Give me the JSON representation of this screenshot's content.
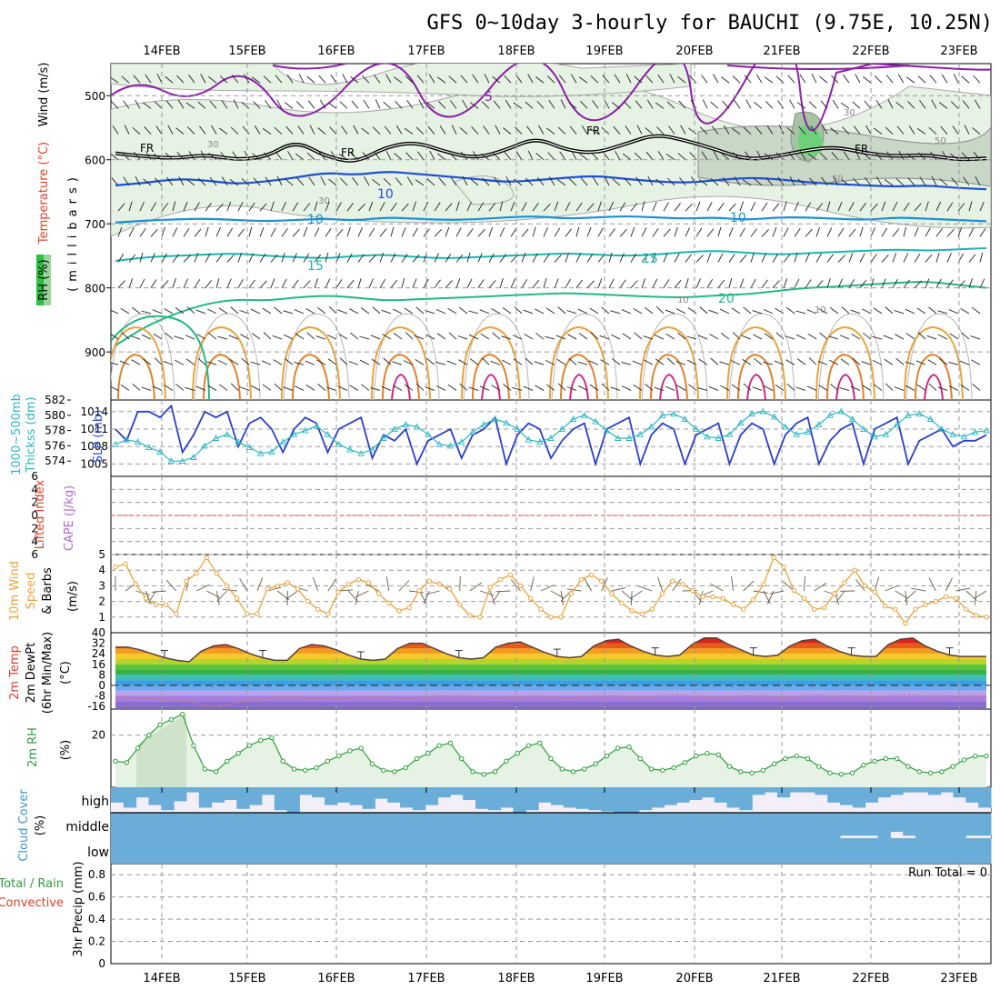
{
  "title": "GFS 0~10day 3-hourly for BAUCHI (9.75E, 10.25N)",
  "run_total": "Run Total = 0",
  "dates": [
    "14FEB",
    "15FEB",
    "16FEB",
    "17FEB",
    "18FEB",
    "19FEB",
    "20FEB",
    "21FEB",
    "22FEB",
    "23FEB"
  ],
  "labels": {
    "p1_rh": "RH (%)",
    "p1_temp": "Temperature (°C)",
    "p1_wind": "Wind (m/s)",
    "p1_axis": "(millibars)",
    "p1_axis_chars": [
      "(",
      "m",
      "i",
      "l",
      "l",
      "i",
      "b",
      "a",
      "r",
      "s",
      ")"
    ],
    "p2_thick": "1000~500mb",
    "p2_thick2": "Thickss (dm)",
    "p2_slp": "SLP (mb)",
    "p3_li": "Lifted Index",
    "p3_cape": "CAPE (J/kg)",
    "p4_a": "10m Wind",
    "p4_b": "Speed",
    "p4_c": "& Barbs",
    "p4_d": "(m/s)",
    "p5_a": "2m Temp",
    "p5_b": "2m DewPt",
    "p5_c": "(6hr Min/Max)",
    "p5_d": "(°C)",
    "p6_a": "2m RH",
    "p6_b": "(%)",
    "p7_a": "Cloud Cover",
    "p7_b": "(%)",
    "p7_high": "high",
    "p7_middle": "middle",
    "p7_low": "low",
    "p8_a": "Total / Rain",
    "p8_b": "Convective",
    "p8_c": "3hr Precip (mm)"
  },
  "chart_data": [
    {
      "type": "line",
      "panel": "upper-air",
      "y_ticks": [
        500,
        600,
        700,
        800,
        900
      ],
      "ylim": [
        450,
        975
      ],
      "contour_labels": [
        "5",
        "5",
        "10",
        "10",
        "15",
        "15",
        "20",
        "FR",
        "FR",
        "FR",
        "FR",
        "30",
        "30",
        "30",
        "50",
        "50",
        "10",
        "10"
      ],
      "freezing_level_mb": [
        590,
        595,
        598,
        592,
        600,
        596,
        570,
        595,
        605,
        580,
        572,
        588,
        598,
        585,
        565,
        585,
        590,
        575,
        560,
        570,
        584,
        600,
        595,
        585,
        580,
        590,
        595,
        592,
        600,
        598
      ],
      "isotherm_5_mb": [
        640,
        636,
        630,
        632,
        638,
        634,
        628,
        620,
        624,
        618,
        622,
        626,
        630,
        635,
        632,
        628,
        625,
        630,
        634,
        636,
        632,
        628,
        630,
        635,
        638,
        640,
        642,
        640,
        644,
        646
      ],
      "isotherm_10_mb": [
        698,
        695,
        693,
        692,
        694,
        696,
        694,
        692,
        695,
        690,
        692,
        694,
        693,
        690,
        688,
        692,
        690,
        688,
        690,
        692,
        690,
        694,
        690,
        690,
        692,
        694,
        690,
        692,
        694,
        696
      ],
      "isotherm_15_mb": [
        758,
        752,
        750,
        748,
        746,
        750,
        752,
        754,
        750,
        748,
        752,
        754,
        752,
        750,
        748,
        746,
        748,
        750,
        748,
        744,
        742,
        745,
        748,
        746,
        744,
        742,
        740,
        742,
        740,
        738
      ],
      "isotherm_20_mb": [
        890,
        860,
        840,
        825,
        818,
        820,
        815,
        812,
        815,
        820,
        818,
        816,
        814,
        812,
        810,
        808,
        810,
        812,
        814,
        815,
        812,
        810,
        805,
        800,
        798,
        795,
        792,
        790,
        795,
        800
      ]
    },
    {
      "type": "line",
      "panel": "thickness-slp",
      "series": [
        {
          "name": "SLP (mb)",
          "ticks": [
            1005,
            1008,
            1011,
            1014
          ],
          "values": [
            1011,
            1009,
            1014,
            1014,
            1013,
            1015,
            1007,
            1010,
            1014,
            1013,
            1014,
            1008,
            1012,
            1013,
            1011,
            1007,
            1011,
            1013,
            1012,
            1007,
            1011,
            1012,
            1013,
            1006,
            1010,
            1009,
            1011,
            1005,
            1009,
            1010,
            1011,
            1006,
            1010,
            1011,
            1013,
            1005,
            1010,
            1012,
            1011,
            1006,
            1009,
            1011,
            1012,
            1005,
            1011,
            1012,
            1013,
            1005,
            1010,
            1012,
            1011,
            1005,
            1010,
            1011,
            1012,
            1005,
            1010,
            1012,
            1011,
            1005,
            1010,
            1012,
            1013,
            1005,
            1009,
            1011,
            1012,
            1005,
            1011,
            1012,
            1013,
            1005,
            1009,
            1010,
            1011,
            1008,
            1009,
            1009,
            1010
          ]
        },
        {
          "name": "1000~500mb Thickness (dm)",
          "ticks": [
            574,
            576,
            578,
            580,
            582
          ],
          "values": [
            576.2,
            576.8,
            576.5,
            575.8,
            575.2,
            574,
            574,
            574.5,
            576,
            577,
            577.5,
            576.5,
            575.8,
            575,
            575.2,
            576.5,
            577.5,
            578,
            578.6,
            577.5,
            576.2,
            575.5,
            575,
            575.5,
            577,
            578.2,
            578.8,
            578.5,
            577.5,
            576.2,
            576,
            576.5,
            577.8,
            578.8,
            579.5,
            579,
            578.2,
            576.8,
            576.5,
            577,
            578.2,
            579.5,
            580,
            579.2,
            578,
            577,
            577,
            577.5,
            578.5,
            580,
            580.2,
            579.5,
            578.2,
            577.2,
            577,
            577.5,
            579,
            580.2,
            580.5,
            579.8,
            578.5,
            577.5,
            577.8,
            578.8,
            580,
            580.5,
            579.5,
            578.2,
            577.2,
            577.5,
            578.8,
            580,
            580.2,
            579.5,
            578.2,
            577.5,
            577.2,
            577.8,
            578
          ]
        }
      ]
    },
    {
      "type": "line",
      "panel": "lifted-index-cape",
      "y_ticks": [
        6,
        4,
        2,
        0,
        2,
        4,
        6
      ],
      "series": [
        {
          "name": "Lifted Index",
          "values": []
        },
        {
          "name": "CAPE",
          "values": []
        }
      ]
    },
    {
      "type": "line",
      "panel": "10m-wind",
      "y_ticks": [
        1,
        2,
        3,
        4,
        5
      ],
      "ylim": [
        0,
        5
      ],
      "series": [
        {
          "name": "10m Wind Speed (m/s)",
          "values": [
            4.2,
            4.4,
            3.1,
            2.2,
            1.8,
            1.8,
            1.2,
            3.3,
            3.8,
            4.8,
            3.8,
            3.0,
            2.2,
            1.2,
            1.2,
            2.8,
            3.0,
            3.2,
            2.8,
            2.0,
            1.5,
            1.2,
            2.6,
            3.1,
            3.4,
            3.2,
            2.5,
            1.9,
            1.4,
            1.6,
            2.7,
            3.3,
            3.1,
            2.8,
            1.8,
            1.1,
            1.0,
            2.9,
            3.4,
            3.7,
            3.0,
            2.2,
            1.5,
            1.0,
            1.0,
            2.5,
            3.4,
            3.7,
            3.3,
            2.5,
            1.9,
            1.4,
            1.2,
            1.5,
            2.5,
            3.3,
            3.1,
            2.7,
            2.3,
            2.3,
            2.2,
            1.8,
            1.5,
            2.1,
            3.1,
            4.8,
            4.2,
            2.7,
            2.2,
            1.5,
            1.6,
            2.5,
            3.2,
            4.0,
            3.0,
            2.6,
            1.7,
            1.5,
            0.6,
            1.5,
            1.8,
            2.0,
            2.3,
            2.2,
            1.5,
            1.1,
            1.0
          ]
        }
      ]
    },
    {
      "type": "area",
      "panel": "2m-temp-dewpt",
      "y_ticks": [
        40,
        32,
        24,
        16,
        8,
        0,
        -8,
        -16
      ],
      "ylim": [
        -18,
        40
      ],
      "series": [
        {
          "name": "2m Temp (°C)",
          "values": [
            29,
            29,
            27,
            24,
            21,
            19,
            18,
            26,
            30,
            31,
            28,
            24,
            21,
            19,
            19,
            28,
            31,
            30,
            27,
            23,
            20,
            19,
            20,
            28,
            32,
            32,
            28,
            24,
            21,
            20,
            21,
            29,
            32,
            33,
            29,
            25,
            22,
            21,
            22,
            30,
            34,
            35,
            30,
            26,
            23,
            22,
            23,
            31,
            36,
            36,
            31,
            27,
            23,
            22,
            23,
            30,
            34,
            35,
            30,
            26,
            23,
            22,
            22,
            31,
            35,
            36,
            30,
            26,
            23,
            22,
            22,
            22
          ]
        },
        {
          "name": "2m DewPt (°C)",
          "values": [
            -9,
            -9,
            -10,
            -10,
            -11,
            -11,
            -12,
            -15,
            -16,
            -15,
            -13,
            -11,
            -10,
            -9,
            -9,
            -9,
            -10,
            -10,
            -10,
            -10,
            -9,
            -9,
            -9,
            -10,
            -10,
            -9,
            -8,
            -8,
            -8,
            -8,
            -9,
            -10,
            -9,
            -9,
            -8,
            -8,
            -9,
            -10,
            -9,
            -8,
            -8,
            -8,
            -9,
            -9,
            -8,
            -7,
            -7,
            -8,
            -8,
            -9,
            -9,
            -8,
            -8,
            -8,
            -9,
            -9,
            -8,
            -7,
            -8,
            -8,
            -8,
            -8,
            -9,
            -8,
            -7,
            -7,
            -8,
            -8,
            -8,
            -8,
            -8,
            -8
          ]
        }
      ]
    },
    {
      "type": "line",
      "panel": "2m-rh",
      "y_ticks": [
        20
      ],
      "ylim": [
        0,
        30
      ],
      "series": [
        {
          "name": "2m RH (%)",
          "values": [
            10,
            9.5,
            15,
            20,
            24,
            26,
            28,
            16,
            7,
            6,
            10,
            13,
            16,
            18,
            19,
            10,
            7,
            6.5,
            7.5,
            10,
            12,
            14,
            15,
            9,
            6.5,
            6,
            7.5,
            11,
            13,
            16,
            17,
            11,
            6,
            5,
            6,
            10,
            13,
            16,
            17,
            11,
            7,
            6,
            7,
            9,
            12,
            15,
            15.5,
            11,
            7,
            6.5,
            7.5,
            9.5,
            12,
            13,
            12.5,
            8,
            6,
            5.5,
            6.5,
            9,
            11,
            12,
            11,
            8,
            5.5,
            5,
            5.5,
            8.5,
            10,
            11,
            11,
            8,
            6,
            5.5,
            6,
            8,
            10.5,
            12,
            12
          ]
        }
      ]
    },
    {
      "type": "bar",
      "panel": "cloud-cover",
      "categories": [
        "high",
        "middle",
        "low"
      ],
      "high_cover_pct": [
        60,
        80,
        40,
        70,
        90,
        55,
        20,
        80,
        60,
        50,
        85,
        70,
        30,
        90,
        100,
        30,
        40,
        70,
        60,
        70,
        85,
        45,
        60,
        80,
        90,
        70,
        40,
        30,
        50,
        85,
        90,
        80,
        100,
        90,
        60,
        70,
        80,
        85,
        90,
        95,
        100,
        100,
        90,
        80,
        70,
        60,
        50,
        40,
        60,
        80,
        90,
        30,
        20,
        40,
        20,
        20,
        30,
        60,
        70,
        80,
        60,
        40,
        30,
        20,
        20,
        30,
        20,
        40,
        60,
        80
      ],
      "middle_cover_pct": [
        100,
        100,
        100,
        100,
        100,
        100,
        100,
        100,
        100,
        100,
        100,
        100,
        100,
        100,
        100,
        100,
        100,
        100,
        100,
        100,
        100,
        100,
        100,
        100,
        100,
        100,
        100,
        100,
        100,
        100,
        100,
        100,
        100,
        100,
        100,
        100,
        100,
        100,
        100,
        100,
        100,
        100,
        100,
        100,
        100,
        100,
        100,
        100,
        100,
        100,
        100,
        100,
        100,
        100,
        100,
        100,
        100,
        100,
        90,
        90,
        90,
        100,
        75,
        90,
        100,
        100,
        100,
        100,
        90,
        90
      ],
      "low_cover_pct": [
        100,
        100,
        100,
        100,
        100,
        100,
        100,
        100,
        100,
        100,
        100,
        100,
        100,
        100,
        100,
        100,
        100,
        100,
        100,
        100,
        100,
        100,
        100,
        100,
        100,
        100,
        100,
        100,
        100,
        100,
        100,
        100,
        100,
        100,
        100,
        100,
        100,
        100,
        100,
        100,
        100,
        100,
        100,
        100,
        100,
        100,
        100,
        100,
        100,
        100,
        100,
        100,
        100,
        100,
        100,
        100,
        100,
        100,
        100,
        100,
        100,
        100,
        100,
        100,
        100,
        100,
        100,
        100,
        100,
        100
      ]
    },
    {
      "type": "bar",
      "panel": "precip",
      "y_ticks": [
        "0",
        "0.2",
        "0.4",
        "0.6",
        "0.8"
      ],
      "ylim": [
        0,
        0.9
      ],
      "series": [
        {
          "name": "3hr Precip (mm)",
          "values": []
        }
      ]
    }
  ]
}
